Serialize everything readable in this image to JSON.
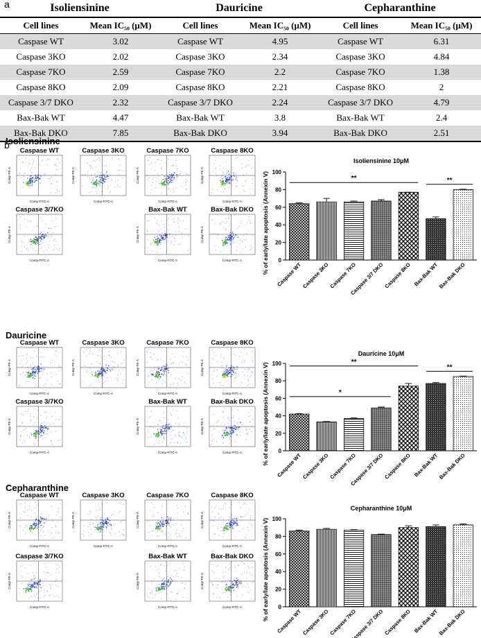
{
  "panel_a": {
    "label": "a",
    "table": {
      "groups": [
        "Isoliensinine",
        "Dauricine",
        "Cepharanthine"
      ],
      "header": [
        "Cell lines",
        "Mean IC₅₀ (μM)",
        "Cell lines",
        "Mean IC₅₀ (μM)",
        "Cell lines",
        "Mean IC₅₀ (μM)"
      ],
      "rows": [
        [
          "Caspase WT",
          3.02,
          "Caspase WT",
          4.95,
          "Caspase WT",
          6.31
        ],
        [
          "Caspase 3KO",
          2.02,
          "Caspase 3KO",
          2.34,
          "Caspase 3KO",
          4.84
        ],
        [
          "Caspase 7KO",
          2.59,
          "Caspase 7KO",
          2.2,
          "Caspase 7KO",
          1.38
        ],
        [
          "Caspase 8KO",
          2.09,
          "Caspase 8KO",
          2.21,
          "Caspase 8KO",
          2
        ],
        [
          "Caspase 3/7 DKO",
          2.32,
          "Caspase 3/7 DKO",
          2.24,
          "Caspase 3/7 DKO",
          4.79
        ],
        [
          "Bax-Bak WT",
          4.47,
          "Bax-Bak WT",
          3.8,
          "Bax-Bak WT",
          2.4
        ],
        [
          "Bax-Bak DKO",
          7.85,
          "Bax-Bak DKO",
          3.94,
          "Bax-Bak DKO",
          2.51
        ]
      ]
    }
  },
  "panel_b": {
    "label": "b",
    "flow_axes": {
      "x": "Comp-FITC-A",
      "y": "Comp-PE-A"
    },
    "sections": [
      {
        "title": "Isoliensinine",
        "flow_panels": [
          "Caspase WT",
          "Caspase 3KO",
          "Caspase 7KO",
          "Caspase 8KO",
          "Caspase 3/7KO",
          "Bax-Bak WT",
          "Bax-Bak DKO"
        ],
        "chart": {
          "type": "bar",
          "title": "Isoliensinine 10μM",
          "y_label": "% of early/late apoptosis (Annexin V)",
          "categories": [
            "Caspase WT",
            "Caspase 3KO",
            "Caspase 7KO",
            "Caspase 3/7 DKO",
            "Caspase 8KO",
            "Bax-Bak WT",
            "Bax-Bak DKO"
          ],
          "values": [
            64,
            66,
            66,
            67,
            77,
            47,
            80
          ],
          "errors": [
            1,
            4,
            1,
            1.5,
            0,
            2,
            0.5
          ],
          "ylim": [
            0,
            100
          ],
          "yticks": [
            0,
            20,
            40,
            60,
            80,
            100
          ],
          "annotations": [
            "**",
            "**"
          ]
        }
      },
      {
        "title": "Dauricine",
        "flow_panels": [
          "Caspase WT",
          "Caspase 3KO",
          "Caspase 7KO",
          "Caspase 8KO",
          "Caspase 3/7KO",
          "Bax-Bak WT",
          "Bax-Bak DKO"
        ],
        "chart": {
          "type": "bar",
          "title": "Dauricine 10μM",
          "y_label": "% of early/late apoptosis (Annexin V)",
          "categories": [
            "Caspase WT",
            "Caspase 3KO",
            "Caspase 7KO",
            "Caspase 3/7 DKO",
            "Caspase 8KO",
            "Bax-Bak WT",
            "Bax-Bak DKO"
          ],
          "values": [
            42,
            33,
            37,
            49,
            74,
            77,
            85
          ],
          "errors": [
            0.5,
            0.5,
            0.5,
            1,
            3,
            1,
            0.5
          ],
          "ylim": [
            0,
            100
          ],
          "yticks": [
            0,
            20,
            40,
            60,
            80,
            100
          ],
          "annotations": [
            "**",
            "*",
            "**"
          ]
        }
      },
      {
        "title": "Cepharanthine",
        "flow_panels": [
          "Caspase WT",
          "Caspase 3KO",
          "Caspase 7KO",
          "Caspase 8KO",
          "Caspase 3/7KO",
          "Bax-Bak WT",
          "Bax-Bak DKO"
        ],
        "chart": {
          "type": "bar",
          "title": "Cepharanthine 10μM",
          "y_label": "% of early/late apoptosis (Annexin V)",
          "categories": [
            "Caspase WT",
            "Caspase 3KO",
            "Caspase 7KO",
            "Caspase 3/7 DKO",
            "Caspase 8KO",
            "Bax-Bak WT",
            "Bax-Bak DKO"
          ],
          "values": [
            86,
            88,
            87,
            82,
            90,
            91,
            93
          ],
          "errors": [
            1,
            1,
            0.5,
            0.5,
            2,
            2,
            1
          ],
          "ylim": [
            0,
            100
          ],
          "yticks": [
            0,
            20,
            40,
            60,
            80,
            100
          ],
          "annotations": []
        }
      }
    ]
  }
}
